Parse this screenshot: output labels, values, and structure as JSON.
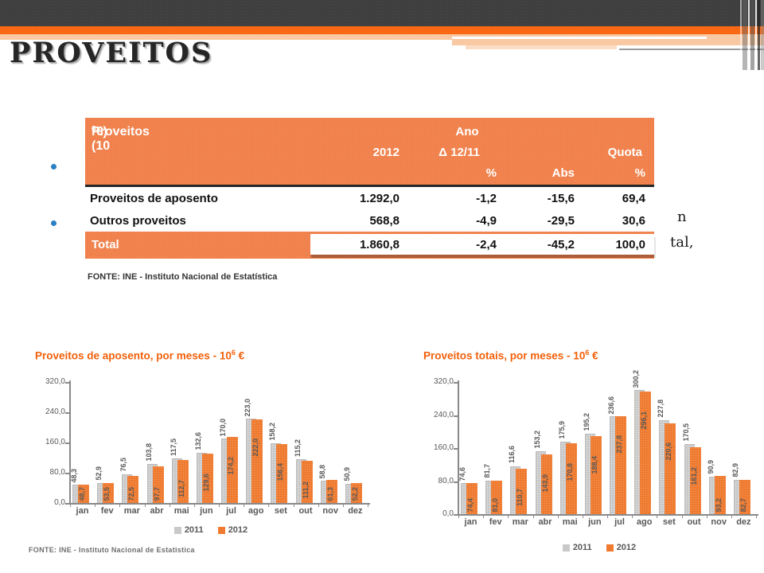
{
  "slide": {
    "title": "PROVEITOS",
    "fragments": [
      {
        "text": "n"
      },
      {
        "text": "tal,"
      }
    ]
  },
  "colors": {
    "band_dark": "#3f3f3f",
    "band_orange": "#f96611",
    "band_peach": "#f9c9a3",
    "table_orange": "#f0814c",
    "bar_gray": "#c9c9c9",
    "bar_orange": "#ef7b30",
    "chart_title_orange": "#f2600a",
    "bullet_blue": "#2b7fc4"
  },
  "table": {
    "title_prefix": "Proveitos (10",
    "title_sup": "6",
    "title_suffix": " €)",
    "header": {
      "ano": "Ano",
      "year": "2012",
      "delta": "Δ 12/11",
      "quota": "Quota",
      "pct_delta": "%",
      "abs": "Abs",
      "pct_quota": "%"
    },
    "rows": [
      {
        "label": "Proveitos de aposento",
        "year": "1.292,0",
        "delta_pct": "-1,2",
        "delta_abs": "-15,6",
        "quota_pct": "69,4"
      },
      {
        "label": "Outros proveitos",
        "year": "568,8",
        "delta_pct": "-4,9",
        "delta_abs": "-29,5",
        "quota_pct": "30,6"
      }
    ],
    "total": {
      "label": "Total",
      "year": "1.860,8",
      "delta_pct": "-2,4",
      "delta_abs": "-45,2",
      "quota_pct": "100,0"
    },
    "source": "FONTE: INE - Instituto Nacional de Estatística"
  },
  "chart_data": [
    {
      "id": "aposento",
      "type": "bar",
      "title_prefix": "Proveitos de aposento, por meses - 10",
      "title_sup": "6",
      "title_suffix": " €",
      "categories": [
        "jan",
        "fev",
        "mar",
        "abr",
        "mai",
        "jun",
        "jul",
        "ago",
        "set",
        "out",
        "nov",
        "dez"
      ],
      "series": [
        {
          "name": "2011",
          "values": [
            48.3,
            52.9,
            76.5,
            103.8,
            117.5,
            132.6,
            170.0,
            223.0,
            158.2,
            115.2,
            58.8,
            50.9
          ]
        },
        {
          "name": "2012",
          "values": [
            48.7,
            53.5,
            72.5,
            97.7,
            112.7,
            129.6,
            174.2,
            222.0,
            156.4,
            111.2,
            61.3,
            52.2
          ]
        }
      ],
      "ylim": [
        0,
        320
      ],
      "yticks": [
        320,
        240,
        160,
        80,
        0
      ],
      "grid": false,
      "legend_position": "bottom",
      "source": "FONTE: INE - Instituto Nacional de Estatistica"
    },
    {
      "id": "totais",
      "type": "bar",
      "title_prefix": "Proveitos totais, por meses - 10",
      "title_sup": "6",
      "title_suffix": " €",
      "categories": [
        "jan",
        "fev",
        "mar",
        "abr",
        "mai",
        "jun",
        "jul",
        "ago",
        "set",
        "out",
        "nov",
        "dez"
      ],
      "series": [
        {
          "name": "2011",
          "values": [
            74.6,
            81.7,
            116.6,
            153.2,
            175.9,
            195.2,
            236.6,
            300.2,
            227.8,
            170.5,
            90.9,
            82.9
          ]
        },
        {
          "name": "2012",
          "values": [
            74.4,
            81.0,
            110.7,
            143.9,
            170.8,
            188.4,
            237.8,
            296.1,
            220.6,
            161.2,
            93.2,
            82.7
          ]
        }
      ],
      "ylim": [
        0,
        320
      ],
      "yticks": [
        320,
        240,
        160,
        80,
        0
      ],
      "grid": false,
      "legend_position": "bottom",
      "source": ""
    }
  ]
}
